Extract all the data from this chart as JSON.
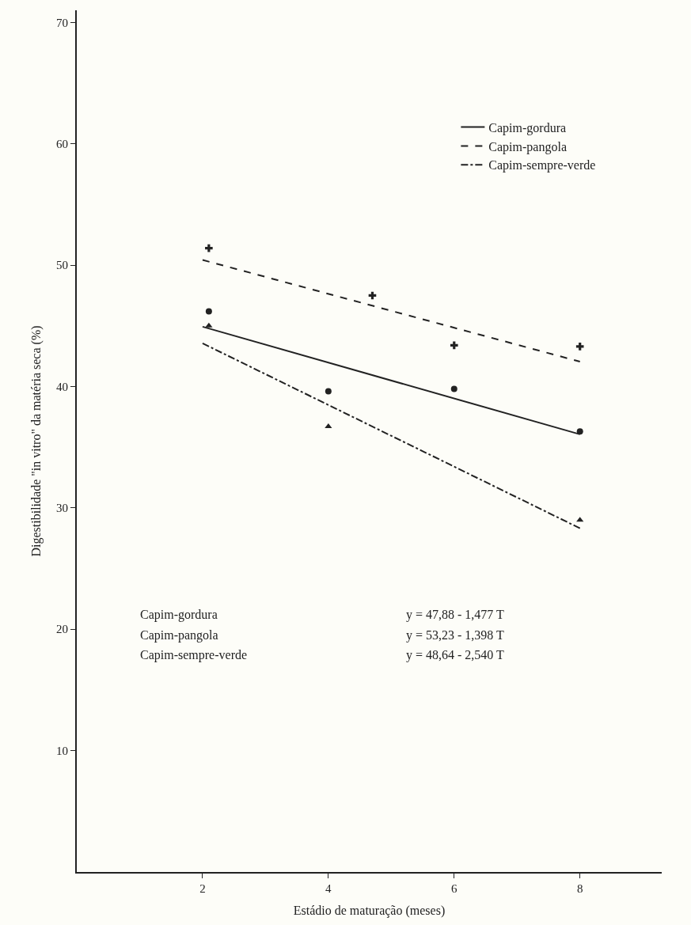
{
  "chart_data": {
    "type": "scatter",
    "xlabel": "Estádio de maturação (meses)",
    "ylabel": "Digestibilidade \"in vitro\" da matéria seca (%)",
    "xlim": [
      0,
      9.3
    ],
    "xticks": [
      2,
      4,
      6,
      8
    ],
    "ylim": [
      0,
      71
    ],
    "yticks": [
      10,
      20,
      30,
      40,
      50,
      60,
      70
    ],
    "grid": false,
    "legend": "top right",
    "series": [
      {
        "color": "#222222",
        "marker": "circle",
        "x": [
          2.1,
          4.0,
          6.0,
          8.0
        ],
        "values": [
          46.2,
          39.6,
          39.8,
          36.3
        ]
      },
      {
        "color": "#222222",
        "marker": "cross",
        "x": [
          2.1,
          4.7,
          6.0,
          8.0
        ],
        "values": [
          51.4,
          47.5,
          43.4,
          43.3
        ]
      },
      {
        "color": "#222222",
        "marker": "triangle",
        "x": [
          2.1,
          4.0,
          8.0
        ],
        "values": [
          45.0,
          36.7,
          29.0
        ]
      },
      {
        "type": "line",
        "name": "Capim-gordura",
        "color": "#222222",
        "line_style": "solid",
        "x": [
          2,
          8
        ],
        "values": [
          44.93,
          36.06
        ]
      },
      {
        "type": "line",
        "name": "Capim-pangola",
        "color": "#222222",
        "line_style": "dashed",
        "x": [
          2,
          8
        ],
        "values": [
          50.43,
          42.05
        ]
      },
      {
        "type": "line",
        "name": "Capim-sempre-verde",
        "color": "#222222",
        "line_style": "dashdot",
        "x": [
          2,
          8
        ],
        "values": [
          43.56,
          28.32
        ]
      }
    ],
    "annotations": [
      "Capim-gordura",
      "y = 47,88 - 1,477 T",
      "Capim-pangola",
      "y = 53,23 - 1,398 T",
      "Capim-sempre-verde",
      "y = 48,64 - 2,540 T"
    ]
  }
}
